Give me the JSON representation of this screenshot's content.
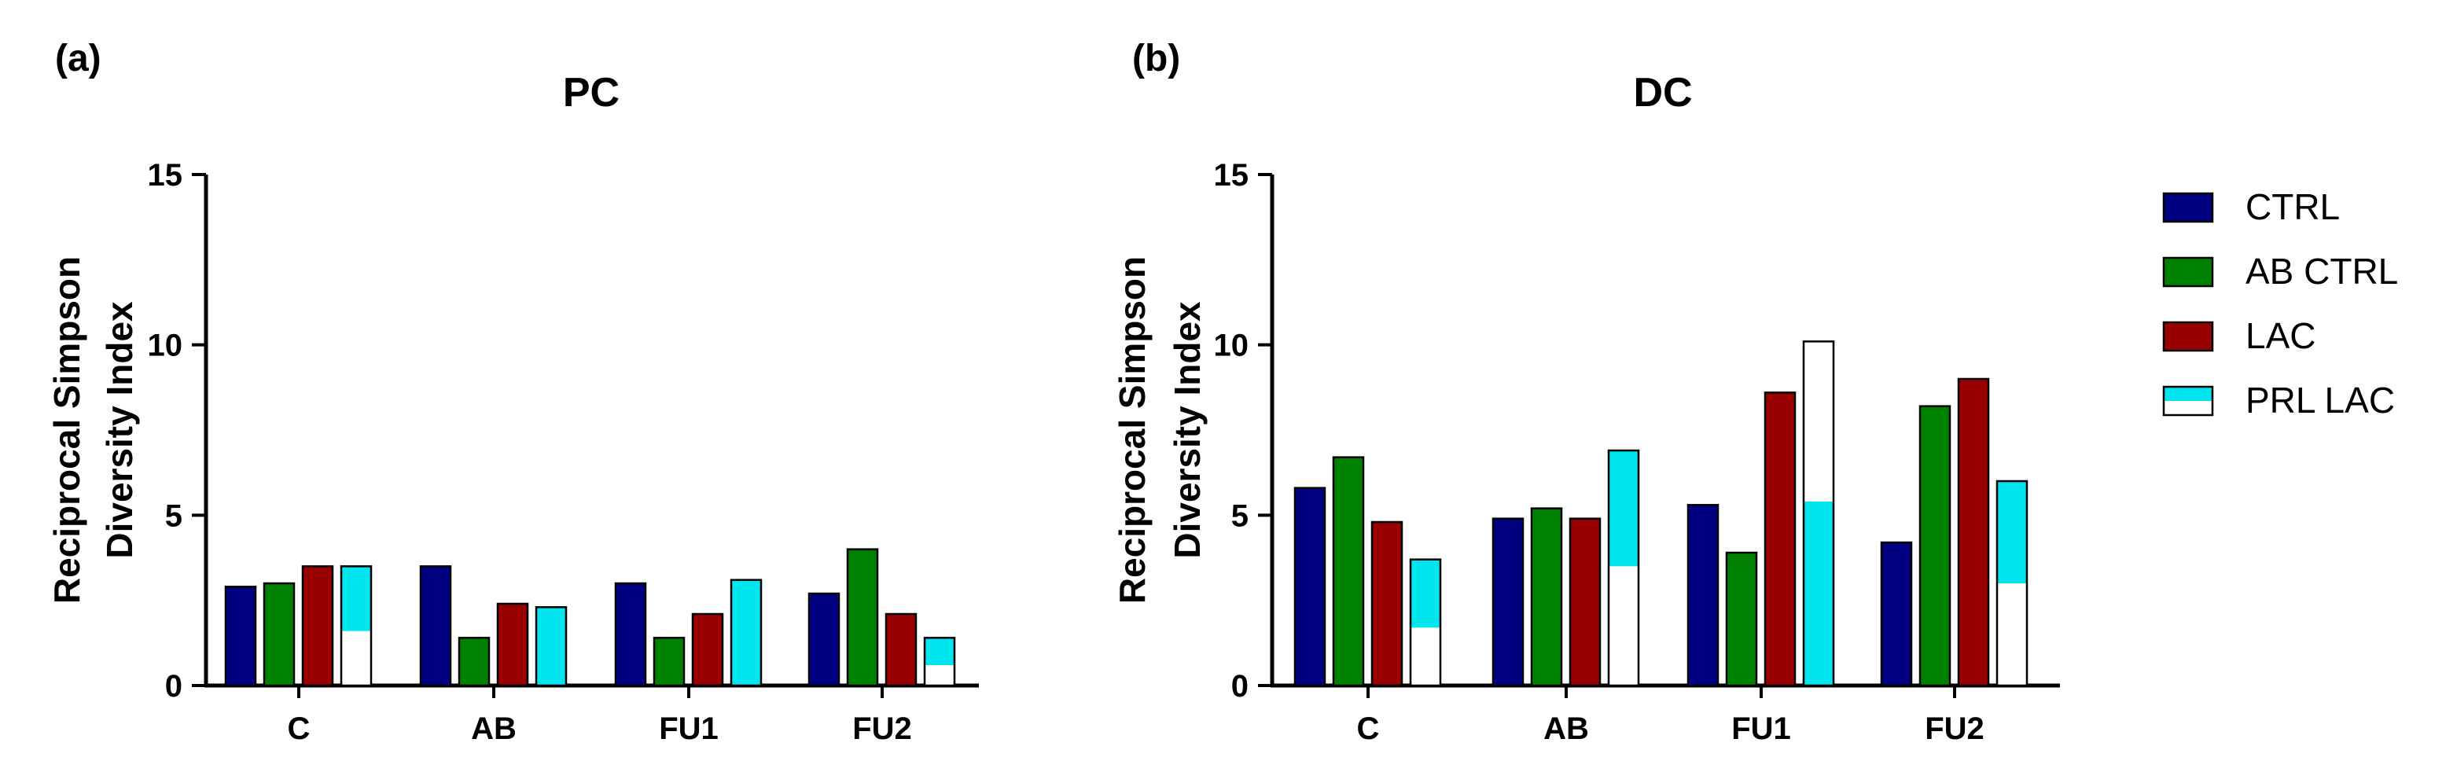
{
  "chart_data": [
    {
      "type": "bar",
      "panel_label": "(a)",
      "title": "PC",
      "ylabel": [
        "Reciprocal Simpson",
        "Diversity Index"
      ],
      "xlabel": "",
      "ylim": [
        0,
        15
      ],
      "yticks": [
        0,
        5,
        10,
        15
      ],
      "categories": [
        "C",
        "AB",
        "FU1",
        "FU2"
      ],
      "series": [
        {
          "name": "CTRL",
          "values": [
            2.9,
            3.5,
            3.0,
            2.7
          ]
        },
        {
          "name": "AB CTRL",
          "values": [
            3.0,
            1.4,
            1.4,
            4.0
          ]
        },
        {
          "name": "LAC",
          "values": [
            3.5,
            2.4,
            2.1,
            2.1
          ]
        },
        {
          "name": "PRL LAC",
          "values": [
            3.5,
            2.3,
            3.1,
            1.4
          ],
          "lower_white": [
            1.6,
            0,
            0,
            0.6
          ]
        }
      ]
    },
    {
      "type": "bar",
      "panel_label": "(b)",
      "title": "DC",
      "ylabel": [
        "Reciprocal Simpson",
        "Diversity Index"
      ],
      "xlabel": "",
      "ylim": [
        0,
        15
      ],
      "yticks": [
        0,
        5,
        10,
        15
      ],
      "categories": [
        "C",
        "AB",
        "FU1",
        "FU2"
      ],
      "series": [
        {
          "name": "CTRL",
          "values": [
            5.8,
            4.9,
            5.3,
            4.2
          ]
        },
        {
          "name": "AB CTRL",
          "values": [
            6.7,
            5.2,
            3.9,
            8.2
          ]
        },
        {
          "name": "LAC",
          "values": [
            4.8,
            4.9,
            8.6,
            9.0
          ]
        },
        {
          "name": "PRL LAC",
          "values": [
            3.7,
            6.9,
            10.1,
            6.0
          ],
          "lower_white": [
            1.7,
            3.5,
            0,
            3.0
          ],
          "upper_white_from": [
            null,
            null,
            5.4,
            null
          ]
        }
      ]
    }
  ],
  "legend": {
    "items": [
      {
        "label": "CTRL",
        "color": "#000080"
      },
      {
        "label": "AB CTRL",
        "color": "#008000"
      },
      {
        "label": "LAC",
        "color": "#990000"
      },
      {
        "label": "PRL LAC",
        "color": "#00e5ee",
        "pattern": "cyan-white"
      }
    ]
  },
  "colors": {
    "CTRL": "#000080",
    "AB CTRL": "#008000",
    "LAC": "#990000",
    "PRL LAC": "#00e5ee"
  }
}
